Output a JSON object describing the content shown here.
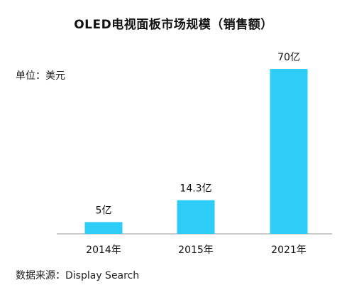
{
  "chart_data": {
    "type": "bar",
    "title": "OLED电视面板市场规模（销售额）",
    "unit_label": "单位：美元",
    "source": "数据来源：Display Search",
    "categories": [
      "2014年",
      "2015年",
      "2021年"
    ],
    "values": [
      5,
      14.3,
      70
    ],
    "data_labels": [
      "5亿",
      "14.3亿",
      "70亿"
    ],
    "ylim": [
      0,
      70
    ],
    "grid": false,
    "legend": "none",
    "bar_color": "#2ecdf8",
    "axis_color": "#999999"
  }
}
